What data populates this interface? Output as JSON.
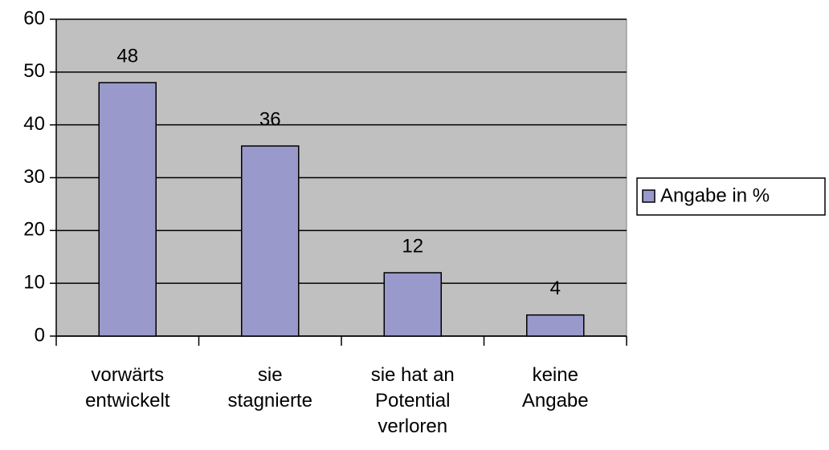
{
  "chart_data": {
    "type": "bar",
    "categories": [
      "vorwärts\nentwickelt",
      "sie\nstagnierte",
      "sie hat an\nPotential\nverloren",
      "keine\nAngabe"
    ],
    "series": [
      {
        "name": "Angabe in %",
        "color": "#9999cc",
        "values": [
          48,
          36,
          12,
          4
        ]
      }
    ],
    "ylim": [
      0,
      60
    ],
    "yticks": [
      0,
      10,
      20,
      30,
      40,
      50,
      60
    ],
    "grid": true,
    "plot_background": "#c0c0c0",
    "legend": "right"
  }
}
